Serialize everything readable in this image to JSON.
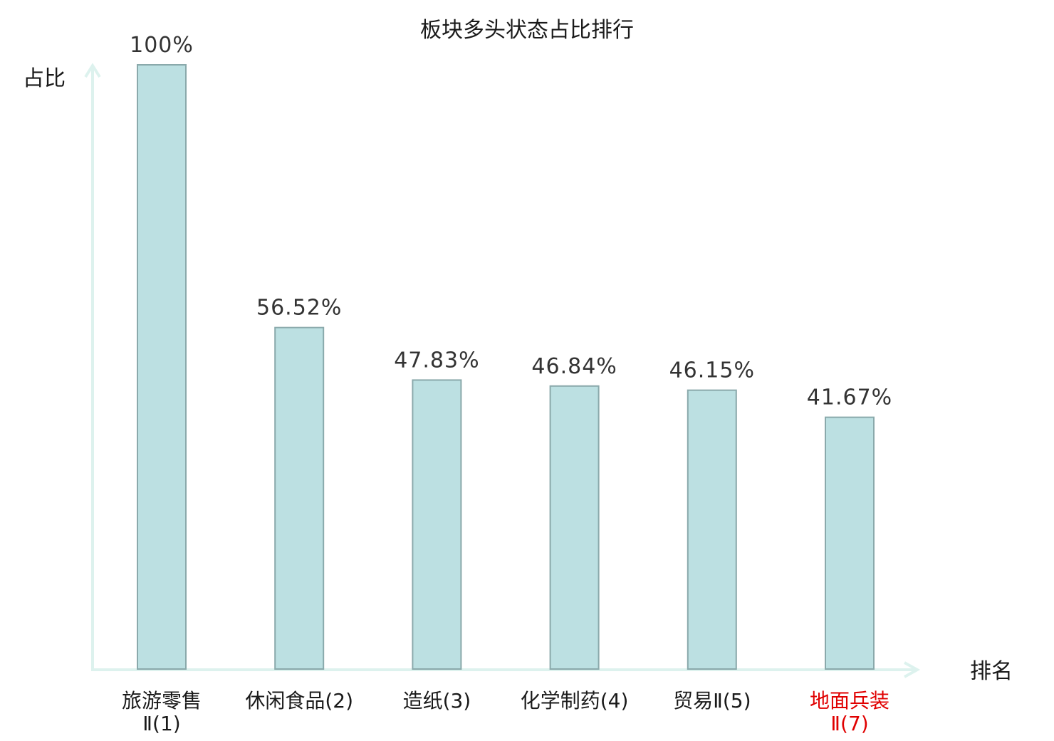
{
  "chart_data": {
    "type": "bar",
    "title": "板块多头状态占比排行",
    "xlabel": "排名",
    "ylabel": "占比",
    "ylim": [
      0,
      100
    ],
    "grid": false,
    "categories": [
      {
        "line1": "旅游零售",
        "line2": "Ⅱ(1)",
        "highlight": false
      },
      {
        "line1": "休闲食品(2)",
        "line2": "",
        "highlight": false
      },
      {
        "line1": "造纸(3)",
        "line2": "",
        "highlight": false
      },
      {
        "line1": "化学制药(4)",
        "line2": "",
        "highlight": false
      },
      {
        "line1": "贸易Ⅱ(5)",
        "line2": "",
        "highlight": false
      },
      {
        "line1": "地面兵装",
        "line2": "Ⅱ(7)",
        "highlight": true
      }
    ],
    "values": [
      100,
      56.52,
      47.83,
      46.84,
      46.15,
      41.67
    ],
    "value_labels": [
      "100%",
      "56.52%",
      "47.83%",
      "46.84%",
      "46.15%",
      "41.67%"
    ]
  },
  "colors": {
    "bar_fill": "#bce0e2",
    "bar_stroke": "#8aa9ab",
    "axis": "#ddf2ee",
    "label_normal": "#1a1a1a",
    "label_highlight": "#e00000"
  }
}
